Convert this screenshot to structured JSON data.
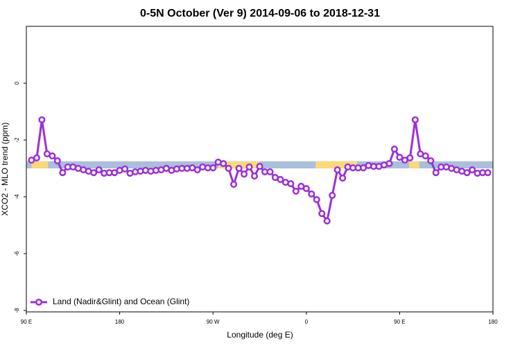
{
  "chart_data": {
    "type": "line",
    "title": "0-5N October (Ver 9)   2014-09-06 to 2018-12-31",
    "x_label": "Longitude (deg E)",
    "y_label": "XCO2 - MLO trend (ppm)",
    "xlim": [
      90,
      540
    ],
    "ylim": [
      -8.05,
      2.0
    ],
    "xticks": [
      {
        "value": 90,
        "label": "90 E"
      },
      180,
      {
        "value": 270,
        "label": "90 W"
      },
      {
        "value": 360,
        "label": "0"
      },
      {
        "value": 450,
        "label": "90 E"
      },
      {
        "value": 540,
        "label": "180"
      }
    ],
    "yticks": [
      0,
      -2,
      -4,
      -6,
      -8
    ],
    "legend": "bottom-left",
    "band": {
      "ylim": [
        -2.75,
        -3.0
      ],
      "color": "#a9bfdb",
      "highlight_color": "#f9d97a",
      "highlights": [
        [
          95,
          111
        ],
        [
          275,
          315
        ],
        [
          369,
          409
        ],
        [
          459,
          469
        ]
      ]
    },
    "x": [
      95,
      100,
      105,
      110,
      115,
      120,
      125,
      130,
      135,
      140,
      145,
      150,
      155,
      160,
      165,
      170,
      175,
      180,
      185,
      190,
      195,
      200,
      205,
      210,
      215,
      220,
      225,
      230,
      235,
      240,
      245,
      250,
      255,
      260,
      265,
      270,
      275,
      280,
      285,
      290,
      295,
      300,
      305,
      310,
      315,
      320,
      325,
      330,
      335,
      340,
      345,
      350,
      355,
      360,
      365,
      370,
      375,
      380,
      385,
      390,
      395,
      400,
      405,
      410,
      415,
      420,
      425,
      430,
      435,
      440,
      445,
      450,
      455,
      460,
      465,
      470,
      475,
      480,
      485,
      490,
      495,
      500,
      505,
      510,
      515,
      520,
      525,
      530,
      535
    ],
    "series": [
      {
        "name": "Land (Nadir&Glint) and Ocean (Glint)",
        "color": "#9b2fd8",
        "values": [
          -2.71,
          -2.63,
          -1.29,
          -2.49,
          -2.56,
          -2.73,
          -3.15,
          -2.95,
          -2.95,
          -3.0,
          -3.05,
          -3.1,
          -3.15,
          -3.05,
          -3.17,
          -3.15,
          -3.15,
          -3.07,
          -3.02,
          -3.17,
          -3.12,
          -3.1,
          -3.07,
          -3.1,
          -3.07,
          -3.05,
          -3.0,
          -3.07,
          -3.02,
          -3.0,
          -3.0,
          -2.98,
          -3.05,
          -2.95,
          -2.98,
          -2.98,
          -2.78,
          -2.83,
          -3.0,
          -3.56,
          -3.0,
          -3.2,
          -2.95,
          -3.27,
          -2.93,
          -3.12,
          -3.12,
          -3.32,
          -3.39,
          -3.49,
          -3.54,
          -3.8,
          -3.63,
          -3.71,
          -3.9,
          -4.1,
          -4.59,
          -4.85,
          -3.95,
          -3.05,
          -3.34,
          -2.95,
          -2.98,
          -2.98,
          -2.98,
          -2.9,
          -2.93,
          -2.93,
          -2.88,
          -2.83,
          -2.32,
          -2.61,
          -2.71,
          -2.63,
          -1.29,
          -2.49,
          -2.56,
          -2.73,
          -3.15,
          -2.95,
          -2.95,
          -3.0,
          -3.05,
          -3.1,
          -3.15,
          -3.05,
          -3.17,
          -3.15,
          -3.15
        ]
      }
    ]
  }
}
